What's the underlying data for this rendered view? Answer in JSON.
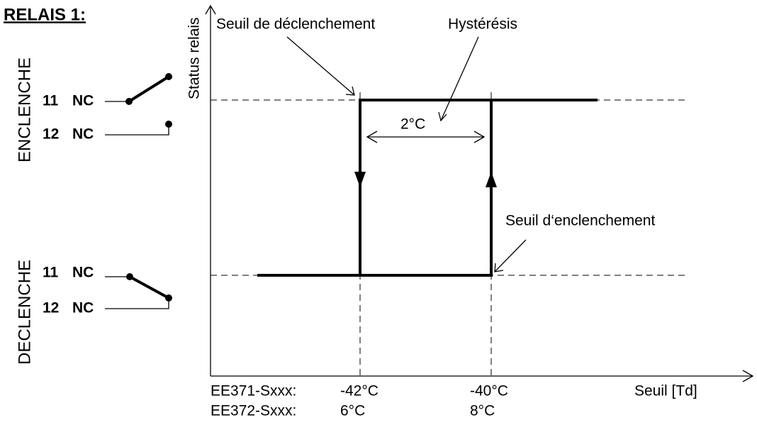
{
  "title": "RELAIS 1:",
  "states": [
    {
      "label": "ENCLENCHE",
      "terminals": [
        {
          "number": "11",
          "type": "NC"
        },
        {
          "number": "12",
          "type": "NC"
        }
      ]
    },
    {
      "label": "DECLENCHE",
      "terminals": [
        {
          "number": "11",
          "type": "NC"
        },
        {
          "number": "12",
          "type": "NC"
        }
      ]
    }
  ],
  "diagram": {
    "y_axis_label": "Status relais",
    "x_axis_label": "Seuil [Td]",
    "annotations": {
      "trip": "Seuil de déclenchement",
      "hysteresis": "Hystérésis",
      "hysteresis_value": "2°C",
      "engage": "Seuil d‘enclenchement"
    },
    "rows": [
      {
        "model": "EE371-Sxxx:",
        "low": "-42°C",
        "high": "-40°C"
      },
      {
        "model": "EE372-Sxxx:",
        "low": "6°C",
        "high": "8°C"
      }
    ]
  }
}
